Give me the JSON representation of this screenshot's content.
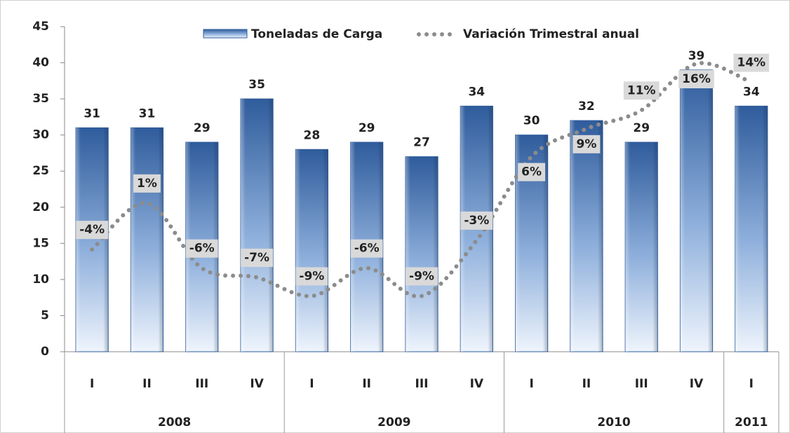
{
  "chart_data": {
    "type": "bar-line",
    "categories": [
      "I",
      "II",
      "III",
      "IV",
      "I",
      "II",
      "III",
      "IV",
      "I",
      "II",
      "III",
      "IV",
      "I"
    ],
    "years": [
      "2008",
      null,
      null,
      null,
      "2009",
      null,
      null,
      null,
      "2010",
      null,
      null,
      null,
      "2011"
    ],
    "series": [
      {
        "name": "Toneladas de Carga",
        "type": "bar",
        "color": "#2f5c9c",
        "values": [
          31,
          31,
          29,
          35,
          28,
          29,
          27,
          34,
          30,
          32,
          29,
          39,
          34
        ]
      },
      {
        "name": "Variación Trimestral anual",
        "type": "line",
        "axis": "y2",
        "color": "#8c8c8c",
        "values": [
          -4,
          1,
          -6,
          -7,
          -9,
          -6,
          -9,
          -3,
          6,
          9,
          11,
          16,
          14
        ],
        "value_labels": [
          "-4%",
          "1%",
          "-6%",
          "-7%",
          "-9%",
          "-6%",
          "-9%",
          "-3%",
          "6%",
          "9%",
          "11%",
          "16%",
          "14%"
        ]
      }
    ],
    "ylim": [
      0,
      45
    ],
    "yticks": [
      0,
      5,
      10,
      15,
      20,
      25,
      30,
      35,
      40,
      45
    ],
    "y2lim": [
      -15,
      20
    ],
    "legend": "top",
    "grid": false
  }
}
